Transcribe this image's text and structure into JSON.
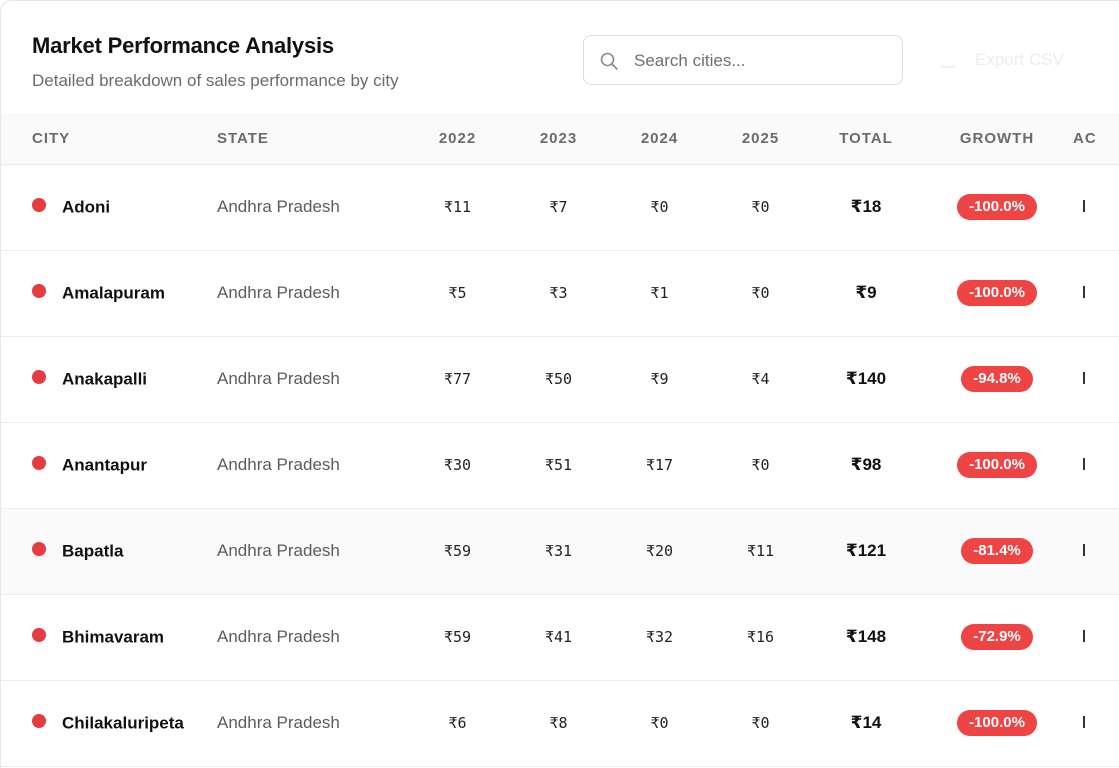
{
  "header": {
    "title": "Market Performance Analysis",
    "subtitle": "Detailed breakdown of sales performance by city"
  },
  "search": {
    "placeholder": "Search cities..."
  },
  "export": {
    "label": "Export CSV"
  },
  "columns": {
    "city": "CITY",
    "state": "STATE",
    "y2022": "2022",
    "y2023": "2023",
    "y2024": "2024",
    "y2025": "2025",
    "total": "TOTAL",
    "growth": "GROWTH",
    "actions": "AC"
  },
  "rows": [
    {
      "city": "Adoni",
      "state": "Andhra Pradesh",
      "y2022": "₹11",
      "y2023": "₹7",
      "y2024": "₹0",
      "y2025": "₹0",
      "total": "₹18",
      "growth": "-100.0%"
    },
    {
      "city": "Amalapuram",
      "state": "Andhra Pradesh",
      "y2022": "₹5",
      "y2023": "₹3",
      "y2024": "₹1",
      "y2025": "₹0",
      "total": "₹9",
      "growth": "-100.0%"
    },
    {
      "city": "Anakapalli",
      "state": "Andhra Pradesh",
      "y2022": "₹77",
      "y2023": "₹50",
      "y2024": "₹9",
      "y2025": "₹4",
      "total": "₹140",
      "growth": "-94.8%"
    },
    {
      "city": "Anantapur",
      "state": "Andhra Pradesh",
      "y2022": "₹30",
      "y2023": "₹51",
      "y2024": "₹17",
      "y2025": "₹0",
      "total": "₹98",
      "growth": "-100.0%"
    },
    {
      "city": "Bapatla",
      "state": "Andhra Pradesh",
      "y2022": "₹59",
      "y2023": "₹31",
      "y2024": "₹20",
      "y2025": "₹11",
      "total": "₹121",
      "growth": "-81.4%"
    },
    {
      "city": "Bhimavaram",
      "state": "Andhra Pradesh",
      "y2022": "₹59",
      "y2023": "₹41",
      "y2024": "₹32",
      "y2025": "₹16",
      "total": "₹148",
      "growth": "-72.9%"
    },
    {
      "city": "Chilakaluripeta",
      "state": "Andhra Pradesh",
      "y2022": "₹6",
      "y2023": "₹8",
      "y2024": "₹0",
      "y2025": "₹0",
      "total": "₹14",
      "growth": "-100.0%"
    }
  ],
  "colors": {
    "status_dot": "#e53b41",
    "growth_negative": "#ef4444"
  }
}
